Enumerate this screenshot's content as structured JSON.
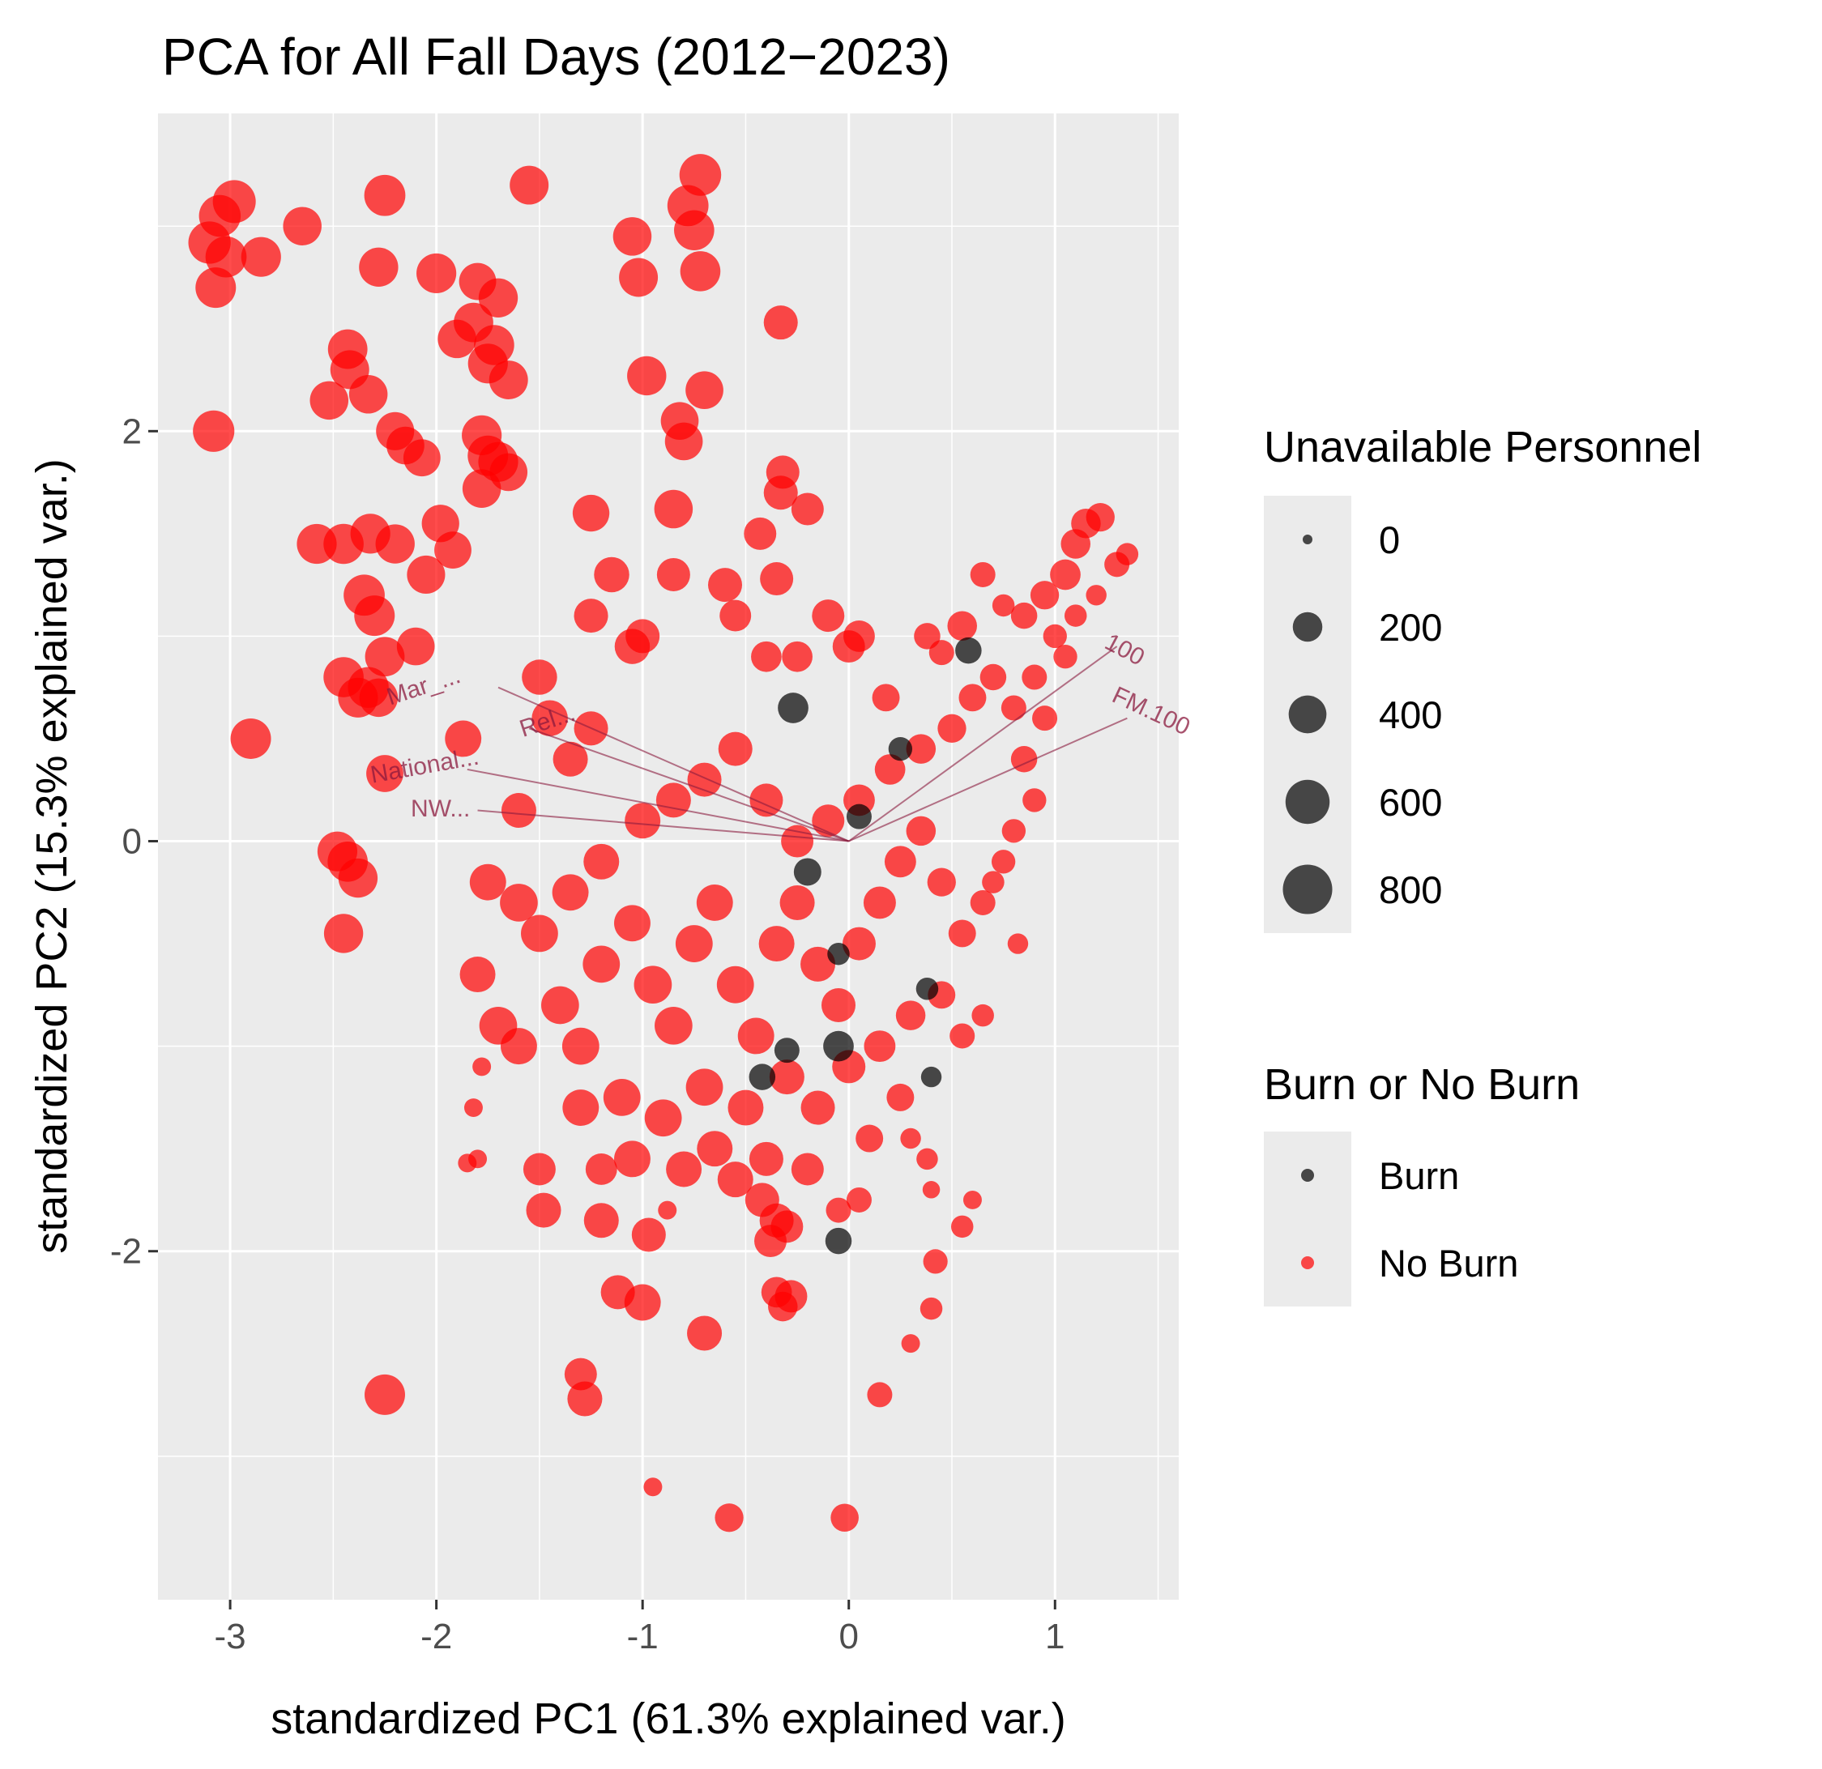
{
  "chart_data": {
    "type": "scatter",
    "title": "PCA for All Fall Days (2012−2023)",
    "xlabel": "standardized PC1 (61.3% explained var.)",
    "ylabel": "standardized PC2 (15.3% explained var.)",
    "xlim": [
      -3.35,
      1.6
    ],
    "ylim": [
      -3.7,
      3.55
    ],
    "x_ticks": [
      -3,
      -2,
      -1,
      0,
      1
    ],
    "y_ticks": [
      -2,
      0,
      2
    ],
    "x_tick_labels": [
      "-3",
      "-2",
      "-1",
      "0",
      "1"
    ],
    "y_tick_labels": [
      "-2",
      "0",
      "2"
    ],
    "grid": true,
    "panel_background": "#ebebeb",
    "legend_position": "right",
    "size_legend": {
      "title": "Unavailable Personnel",
      "breaks": [
        0,
        200,
        400,
        600,
        800
      ],
      "labels": [
        "0",
        "200",
        "400",
        "600",
        "800"
      ],
      "range": [
        0,
        900
      ]
    },
    "color_legend": {
      "title": "Burn or No Burn",
      "entries": [
        {
          "label": "Burn",
          "color": "#000000"
        },
        {
          "label": "No Burn",
          "color": "#ff0000"
        }
      ]
    },
    "point_alpha": 0.7,
    "variable_labels": [
      {
        "text": "Mar_...",
        "x": -2.05,
        "y": 0.72,
        "rotate": 18
      },
      {
        "text": "Rel...",
        "x": -1.45,
        "y": 0.55,
        "rotate": 18
      },
      {
        "text": "National...",
        "x": -2.05,
        "y": 0.33,
        "rotate": 10
      },
      {
        "text": "NW...",
        "x": -1.98,
        "y": 0.12,
        "rotate": 0
      },
      {
        "text": "100",
        "x": 1.32,
        "y": 0.9,
        "rotate": -28
      },
      {
        "text": "FM.100",
        "x": 1.45,
        "y": 0.6,
        "rotate": -25
      }
    ],
    "variable_arrows": [
      {
        "x": -1.7,
        "y": 0.75
      },
      {
        "x": -1.55,
        "y": 0.55
      },
      {
        "x": -1.85,
        "y": 0.35
      },
      {
        "x": -1.8,
        "y": 0.15
      },
      {
        "x": 1.3,
        "y": 0.95
      },
      {
        "x": 1.35,
        "y": 0.6
      }
    ],
    "series": [
      {
        "name": "No Burn",
        "color": "#ff0000",
        "points": [
          [
            -3.05,
            3.05,
            520
          ],
          [
            -2.98,
            3.12,
            560
          ],
          [
            -3.1,
            2.92,
            540
          ],
          [
            -3.02,
            2.85,
            500
          ],
          [
            -3.07,
            2.7,
            480
          ],
          [
            -2.85,
            2.85,
            460
          ],
          [
            -2.65,
            3.0,
            420
          ],
          [
            -2.25,
            3.15,
            500
          ],
          [
            -2.28,
            2.8,
            440
          ],
          [
            -2.0,
            2.77,
            460
          ],
          [
            -1.55,
            3.2,
            430
          ],
          [
            -1.05,
            2.95,
            420
          ],
          [
            -1.02,
            2.75,
            430
          ],
          [
            -0.78,
            3.1,
            500
          ],
          [
            -0.72,
            3.25,
            520
          ],
          [
            -0.75,
            2.98,
            470
          ],
          [
            -0.72,
            2.78,
            470
          ],
          [
            -0.33,
            2.53,
            300
          ],
          [
            -1.8,
            2.73,
            380
          ],
          [
            -1.82,
            2.53,
            450
          ],
          [
            -1.7,
            2.65,
            440
          ],
          [
            -1.9,
            2.45,
            420
          ],
          [
            -1.75,
            2.33,
            460
          ],
          [
            -1.72,
            2.42,
            470
          ],
          [
            -1.65,
            2.25,
            430
          ],
          [
            -2.43,
            2.4,
            450
          ],
          [
            -2.42,
            2.3,
            430
          ],
          [
            -2.52,
            2.15,
            420
          ],
          [
            -2.33,
            2.18,
            420
          ],
          [
            -2.2,
            2.0,
            410
          ],
          [
            -2.15,
            1.93,
            400
          ],
          [
            -2.07,
            1.87,
            380
          ],
          [
            -1.78,
            1.98,
            460
          ],
          [
            -1.75,
            1.88,
            480
          ],
          [
            -1.7,
            1.85,
            460
          ],
          [
            -1.78,
            1.72,
            420
          ],
          [
            -1.65,
            1.8,
            400
          ],
          [
            -1.98,
            1.55,
            390
          ],
          [
            -1.92,
            1.42,
            380
          ],
          [
            -2.05,
            1.3,
            410
          ],
          [
            -0.98,
            2.27,
            440
          ],
          [
            -0.7,
            2.2,
            400
          ],
          [
            -0.8,
            1.95,
            400
          ],
          [
            -0.82,
            2.05,
            400
          ],
          [
            -0.32,
            1.8,
            280
          ],
          [
            -0.33,
            1.7,
            300
          ],
          [
            -0.2,
            1.62,
            260
          ],
          [
            -0.85,
            1.62,
            420
          ],
          [
            -0.43,
            1.5,
            260
          ],
          [
            -3.08,
            2.0,
            510
          ],
          [
            -2.9,
            0.5,
            480
          ],
          [
            -2.58,
            1.45,
            460
          ],
          [
            -2.45,
            1.45,
            470
          ],
          [
            -2.32,
            1.5,
            460
          ],
          [
            -2.2,
            1.45,
            440
          ],
          [
            -2.35,
            1.2,
            500
          ],
          [
            -2.3,
            1.1,
            480
          ],
          [
            -2.25,
            0.9,
            450
          ],
          [
            -2.45,
            0.8,
            470
          ],
          [
            -2.38,
            0.7,
            460
          ],
          [
            -2.28,
            0.7,
            420
          ],
          [
            -2.33,
            0.75,
            490
          ],
          [
            -2.1,
            0.95,
            400
          ],
          [
            -1.87,
            0.5,
            360
          ],
          [
            -2.25,
            0.33,
            380
          ],
          [
            -2.48,
            -0.05,
            460
          ],
          [
            -2.43,
            -0.1,
            470
          ],
          [
            -2.38,
            -0.18,
            440
          ],
          [
            -2.45,
            -0.45,
            440
          ],
          [
            -2.25,
            -2.7,
            480
          ],
          [
            -1.3,
            -2.6,
            260
          ],
          [
            -1.28,
            -2.72,
            320
          ],
          [
            -0.7,
            -2.4,
            320
          ],
          [
            -1.0,
            -2.25,
            360
          ],
          [
            -1.12,
            -2.2,
            300
          ],
          [
            -0.28,
            -2.22,
            260
          ],
          [
            -0.35,
            -2.2,
            220
          ],
          [
            -0.32,
            -2.27,
            200
          ],
          [
            -0.58,
            -3.3,
            180
          ],
          [
            -0.02,
            -3.3,
            170
          ],
          [
            -0.95,
            -3.15,
            40
          ],
          [
            0.15,
            -2.7,
            120
          ],
          [
            0.3,
            -2.45,
            40
          ],
          [
            0.4,
            -2.28,
            80
          ],
          [
            0.42,
            -2.05,
            110
          ],
          [
            0.55,
            -1.88,
            80
          ],
          [
            0.6,
            -1.75,
            40
          ],
          [
            0.4,
            -1.7,
            30
          ],
          [
            0.38,
            -1.55,
            70
          ],
          [
            0.3,
            -1.45,
            60
          ],
          [
            -1.8,
            -1.55,
            40
          ],
          [
            -1.85,
            -1.57,
            40
          ],
          [
            -1.82,
            -1.3,
            40
          ],
          [
            -1.78,
            -1.1,
            40
          ],
          [
            -1.2,
            -1.6,
            240
          ],
          [
            -1.5,
            -1.6,
            260
          ],
          [
            -1.48,
            -1.8,
            320
          ],
          [
            -1.2,
            -1.85,
            320
          ],
          [
            -0.97,
            -1.92,
            300
          ],
          [
            -0.88,
            -1.8,
            40
          ],
          [
            -0.55,
            -1.65,
            340
          ],
          [
            -0.42,
            -1.75,
            300
          ],
          [
            -0.35,
            -1.85,
            300
          ],
          [
            -0.3,
            -1.88,
            260
          ],
          [
            -0.38,
            -1.95,
            260
          ],
          [
            -0.05,
            -1.8,
            120
          ],
          [
            0.05,
            -1.75,
            120
          ],
          [
            -1.25,
            1.6,
            370
          ],
          [
            -1.15,
            1.3,
            330
          ],
          [
            -1.05,
            0.95,
            330
          ],
          [
            -1.25,
            1.1,
            300
          ],
          [
            -1.0,
            1.0,
            300
          ],
          [
            -0.85,
            1.3,
            280
          ],
          [
            -0.6,
            1.25,
            300
          ],
          [
            -0.55,
            1.1,
            240
          ],
          [
            -0.35,
            1.28,
            280
          ],
          [
            -0.4,
            0.9,
            220
          ],
          [
            -0.25,
            0.9,
            220
          ],
          [
            -0.1,
            1.1,
            260
          ],
          [
            0.0,
            0.95,
            260
          ],
          [
            0.05,
            1.0,
            240
          ],
          [
            0.18,
            0.7,
            160
          ],
          [
            0.38,
            1.0,
            140
          ],
          [
            0.45,
            0.92,
            120
          ],
          [
            0.55,
            1.05,
            200
          ],
          [
            0.65,
            1.3,
            120
          ],
          [
            0.75,
            1.15,
            80
          ],
          [
            0.85,
            1.1,
            140
          ],
          [
            0.95,
            1.2,
            180
          ],
          [
            1.05,
            1.3,
            220
          ],
          [
            1.15,
            1.55,
            200
          ],
          [
            1.22,
            1.58,
            180
          ],
          [
            1.3,
            1.35,
            120
          ],
          [
            1.35,
            1.4,
            80
          ],
          [
            1.1,
            1.45,
            200
          ],
          [
            -1.5,
            0.8,
            330
          ],
          [
            -1.45,
            0.6,
            350
          ],
          [
            -1.35,
            0.4,
            320
          ],
          [
            -1.25,
            0.55,
            300
          ],
          [
            -1.6,
            0.15,
            320
          ],
          [
            -1.75,
            -0.2,
            360
          ],
          [
            -1.6,
            -0.3,
            400
          ],
          [
            -1.5,
            -0.45,
            380
          ],
          [
            -1.35,
            -0.25,
            360
          ],
          [
            -1.2,
            -0.1,
            340
          ],
          [
            -1.0,
            0.1,
            340
          ],
          [
            -0.85,
            0.2,
            320
          ],
          [
            -0.7,
            0.3,
            300
          ],
          [
            -0.55,
            0.45,
            300
          ],
          [
            -0.4,
            0.2,
            280
          ],
          [
            -0.25,
            0.0,
            260
          ],
          [
            -0.1,
            0.1,
            260
          ],
          [
            0.05,
            0.2,
            240
          ],
          [
            0.2,
            0.35,
            220
          ],
          [
            0.35,
            0.45,
            200
          ],
          [
            0.5,
            0.55,
            180
          ],
          [
            0.6,
            0.7,
            160
          ],
          [
            0.7,
            0.8,
            140
          ],
          [
            0.8,
            0.65,
            120
          ],
          [
            0.9,
            0.8,
            120
          ],
          [
            -1.8,
            -0.65,
            340
          ],
          [
            -1.7,
            -0.9,
            400
          ],
          [
            -1.6,
            -1.0,
            360
          ],
          [
            -1.4,
            -0.8,
            400
          ],
          [
            -1.3,
            -1.0,
            380
          ],
          [
            -1.2,
            -0.6,
            380
          ],
          [
            -1.05,
            -0.4,
            360
          ],
          [
            -0.95,
            -0.7,
            400
          ],
          [
            -0.85,
            -0.9,
            400
          ],
          [
            -0.75,
            -0.5,
            380
          ],
          [
            -0.65,
            -0.3,
            360
          ],
          [
            -0.55,
            -0.7,
            380
          ],
          [
            -0.45,
            -0.95,
            360
          ],
          [
            -0.35,
            -0.5,
            340
          ],
          [
            -0.25,
            -0.3,
            320
          ],
          [
            -0.15,
            -0.6,
            320
          ],
          [
            -0.05,
            -0.8,
            300
          ],
          [
            0.05,
            -0.5,
            280
          ],
          [
            0.15,
            -0.3,
            260
          ],
          [
            0.25,
            -0.1,
            240
          ],
          [
            0.35,
            0.05,
            200
          ],
          [
            0.45,
            -0.2,
            180
          ],
          [
            0.55,
            -0.45,
            160
          ],
          [
            0.65,
            -0.3,
            120
          ],
          [
            0.75,
            -0.1,
            100
          ],
          [
            -1.3,
            -1.3,
            360
          ],
          [
            -1.1,
            -1.25,
            380
          ],
          [
            -0.9,
            -1.35,
            380
          ],
          [
            -0.7,
            -1.2,
            380
          ],
          [
            -0.5,
            -1.3,
            340
          ],
          [
            -0.3,
            -1.15,
            320
          ],
          [
            -0.15,
            -1.3,
            300
          ],
          [
            0.0,
            -1.1,
            280
          ],
          [
            0.15,
            -1.0,
            240
          ],
          [
            0.3,
            -0.85,
            200
          ],
          [
            0.45,
            -0.75,
            160
          ],
          [
            0.55,
            -0.95,
            120
          ],
          [
            0.65,
            -0.85,
            80
          ],
          [
            0.25,
            -1.25,
            160
          ],
          [
            0.1,
            -1.45,
            160
          ],
          [
            -1.05,
            -1.55,
            360
          ],
          [
            -0.8,
            -1.6,
            340
          ],
          [
            -0.65,
            -1.5,
            340
          ],
          [
            -0.4,
            -1.55,
            300
          ],
          [
            -0.2,
            -1.6,
            260
          ],
          [
            1.0,
            1.0,
            100
          ],
          [
            1.1,
            1.1,
            80
          ],
          [
            1.2,
            1.2,
            60
          ],
          [
            0.95,
            0.6,
            120
          ],
          [
            1.05,
            0.9,
            100
          ],
          [
            0.85,
            0.4,
            140
          ],
          [
            0.9,
            0.2,
            100
          ],
          [
            0.8,
            0.05,
            100
          ],
          [
            0.7,
            -0.2,
            80
          ],
          [
            0.82,
            -0.5,
            60
          ]
        ]
      },
      {
        "name": "Burn",
        "color": "#000000",
        "points": [
          [
            -0.27,
            0.65,
            220
          ],
          [
            0.05,
            0.12,
            120
          ],
          [
            0.58,
            0.93,
            140
          ],
          [
            -0.2,
            -0.15,
            160
          ],
          [
            -0.05,
            -0.55,
            80
          ],
          [
            0.38,
            -0.72,
            80
          ],
          [
            -0.3,
            -1.02,
            120
          ],
          [
            -0.05,
            -1.0,
            220
          ],
          [
            -0.42,
            -1.15,
            140
          ],
          [
            0.4,
            -1.15,
            60
          ],
          [
            -0.05,
            -1.95,
            140
          ],
          [
            0.25,
            0.45,
            100
          ]
        ]
      }
    ]
  }
}
